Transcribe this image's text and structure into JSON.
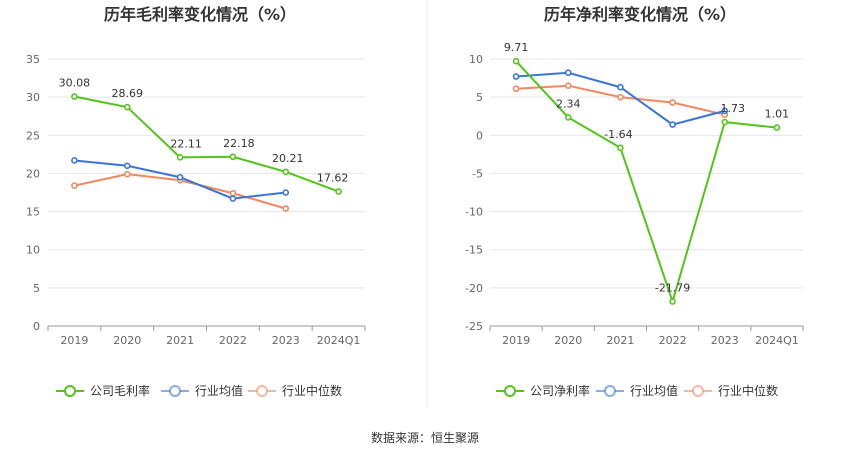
{
  "source_note": "数据来源：恒生聚源",
  "chart_data": [
    {
      "type": "line",
      "title": "历年毛利率变化情况（%）",
      "categories": [
        "2019",
        "2020",
        "2021",
        "2022",
        "2023",
        "2024Q1"
      ],
      "ylim": [
        0,
        35
      ],
      "yticks": [
        0,
        5,
        10,
        15,
        20,
        25,
        30,
        35
      ],
      "grid": true,
      "legend_position": "bottom",
      "series": [
        {
          "name": "公司毛利率",
          "color": "#52c41a",
          "values": [
            30.08,
            28.69,
            22.11,
            22.18,
            20.21,
            17.62
          ],
          "labels": [
            "30.08",
            "28.69",
            "22.11",
            "22.18",
            "20.21",
            "17.62"
          ]
        },
        {
          "name": "行业均值",
          "color": "#3a75d6",
          "values": [
            21.7,
            21.0,
            19.5,
            16.7,
            17.5,
            null
          ]
        },
        {
          "name": "行业中位数",
          "color": "#f08860",
          "values": [
            18.4,
            19.9,
            19.1,
            17.4,
            15.4,
            null
          ]
        }
      ]
    },
    {
      "type": "line",
      "title": "历年净利率变化情况（%）",
      "categories": [
        "2019",
        "2020",
        "2021",
        "2022",
        "2023",
        "2024Q1"
      ],
      "ylim": [
        -25,
        10
      ],
      "yticks": [
        -25,
        -20,
        -15,
        -10,
        -5,
        0,
        5,
        10
      ],
      "grid": true,
      "legend_position": "bottom",
      "series": [
        {
          "name": "公司净利率",
          "color": "#52c41a",
          "values": [
            9.71,
            2.34,
            -1.64,
            -21.79,
            1.73,
            1.01
          ],
          "labels": [
            "9.71",
            "2.34",
            "-1.64",
            "-21.79",
            "1.73",
            "1.01"
          ]
        },
        {
          "name": "行业均值",
          "color": "#3a75d6",
          "values": [
            7.7,
            8.2,
            6.3,
            1.4,
            3.2,
            null
          ]
        },
        {
          "name": "行业中位数",
          "color": "#f08860",
          "values": [
            6.1,
            6.5,
            5.0,
            4.3,
            2.7,
            null
          ]
        }
      ]
    }
  ]
}
